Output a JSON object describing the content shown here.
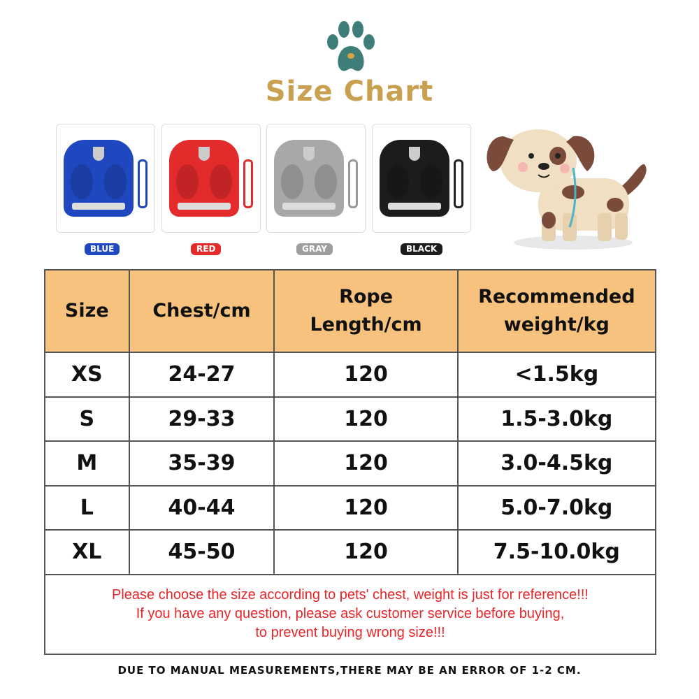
{
  "header": {
    "title": "Size Chart",
    "logo_icon": "paw-icon",
    "logo_color": "#3f7d78"
  },
  "colors": [
    {
      "label": "BLUE",
      "hex": "#1f48c0"
    },
    {
      "label": "RED",
      "hex": "#e32b2b"
    },
    {
      "label": "GRAY",
      "hex": "#9e9e9e"
    },
    {
      "label": "BLACK",
      "hex": "#1c1c1c"
    }
  ],
  "illustration": "dog-icon",
  "table": {
    "headers": [
      "Size",
      "Chest/cm",
      "Rope Length/cm",
      "Recommended weight/kg"
    ],
    "rows": [
      [
        "XS",
        "24-27",
        "120",
        "<1.5kg"
      ],
      [
        "S",
        "29-33",
        "120",
        "1.5-3.0kg"
      ],
      [
        "M",
        "35-39",
        "120",
        "3.0-4.5kg"
      ],
      [
        "L",
        "40-44",
        "120",
        "5.0-7.0kg"
      ],
      [
        "XL",
        "45-50",
        "120",
        "7.5-10.0kg"
      ]
    ]
  },
  "notes": [
    "Please choose the size according to pets' chest, weight is just for reference!!!",
    "If you have any question, please ask customer service before buying,",
    "to prevent buying wrong size!!!"
  ],
  "footer": "DUE TO MANUAL MEASUREMENTS,THERE MAY BE AN ERROR OF 1-2 CM."
}
